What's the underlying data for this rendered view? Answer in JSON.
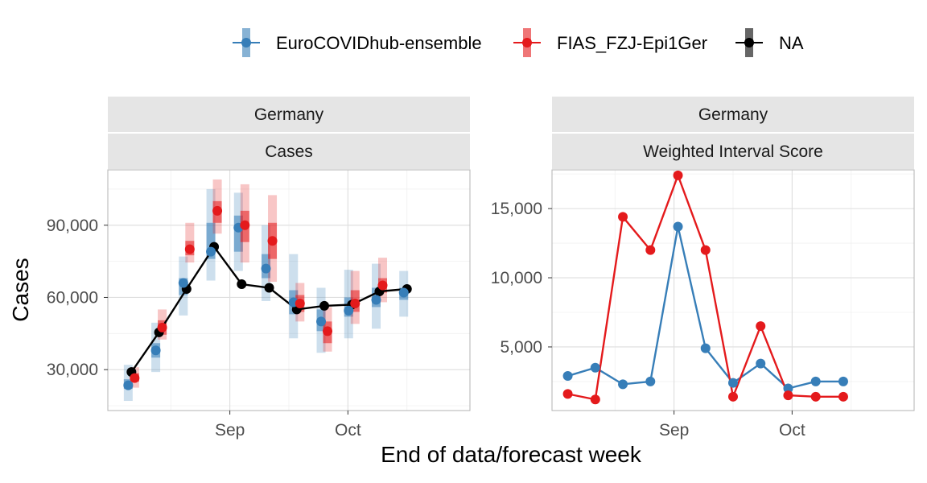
{
  "legend": {
    "items": [
      {
        "label": "EuroCOVIDhub-ensemble",
        "color": "#377EB8"
      },
      {
        "label": "FIAS_FZJ-Epi1Ger",
        "color": "#E41A1C"
      },
      {
        "label": "NA",
        "color": "#000000"
      }
    ]
  },
  "xlabel": "End of data/forecast week",
  "ylabel": "Cases",
  "chart_data": [
    {
      "type": "line",
      "panel": "left",
      "strip_top": "Germany",
      "strip_bottom": "Cases",
      "xlim": [
        "2021-08-01",
        "2021-11-01"
      ],
      "ylim": [
        13000,
        113000
      ],
      "y_ticks": [
        30000,
        60000,
        90000
      ],
      "y_tick_labels": [
        "30,000",
        "60,000",
        "90,000"
      ],
      "x_ticks": [
        "2021-09-01",
        "2021-10-01"
      ],
      "x_tick_labels": [
        "Sep",
        "Oct"
      ],
      "grid": true,
      "truth": {
        "name": "NA",
        "color": "#000000",
        "x": [
          "2021-08-07",
          "2021-08-14",
          "2021-08-21",
          "2021-08-28",
          "2021-09-04",
          "2021-09-11",
          "2021-09-18",
          "2021-09-25",
          "2021-10-02",
          "2021-10-09",
          "2021-10-16"
        ],
        "values": [
          29000,
          45500,
          63500,
          81000,
          65500,
          64000,
          55000,
          56500,
          57000,
          62500,
          63500
        ]
      },
      "forecasts": [
        {
          "name": "EuroCOVIDhub-ensemble",
          "color": "#377EB8",
          "x": [
            "2021-08-07",
            "2021-08-14",
            "2021-08-21",
            "2021-08-28",
            "2021-09-04",
            "2021-09-11",
            "2021-09-18",
            "2021-09-25",
            "2021-10-02",
            "2021-10-09",
            "2021-10-16"
          ],
          "median": [
            23500,
            38000,
            66000,
            79000,
            89000,
            72000,
            58000,
            50000,
            54500,
            59000,
            62000
          ],
          "q25": [
            22000,
            35000,
            61000,
            76000,
            79000,
            68000,
            53000,
            46000,
            52000,
            56000,
            59000
          ],
          "q75": [
            26000,
            41000,
            68000,
            91000,
            94000,
            78000,
            63000,
            55000,
            60000,
            64000,
            64000
          ],
          "q05": [
            17000,
            29000,
            52500,
            67000,
            71000,
            58500,
            43000,
            37000,
            43000,
            47000,
            52000
          ],
          "q95": [
            32000,
            49500,
            77000,
            105000,
            103500,
            90000,
            78000,
            64000,
            71500,
            74000,
            71000
          ]
        },
        {
          "name": "FIAS_FZJ-Epi1Ger",
          "color": "#E41A1C",
          "x": [
            "2021-08-07",
            "2021-08-14",
            "2021-08-21",
            "2021-08-28",
            "2021-09-04",
            "2021-09-11",
            "2021-09-18",
            "2021-09-25",
            "2021-10-02",
            "2021-10-09"
          ],
          "median": [
            26500,
            47500,
            80000,
            96000,
            90000,
            83500,
            57500,
            46000,
            57500,
            65000
          ],
          "q25": [
            25000,
            44500,
            77500,
            91000,
            83000,
            76000,
            54000,
            41000,
            54000,
            62000
          ],
          "q75": [
            28500,
            50500,
            83500,
            100000,
            96000,
            91000,
            61000,
            50000,
            63000,
            68000
          ],
          "q05": [
            22500,
            42500,
            74500,
            86500,
            74500,
            66500,
            50000,
            37500,
            49000,
            58000
          ],
          "q95": [
            31000,
            55000,
            91000,
            109000,
            107000,
            102500,
            66000,
            56000,
            71000,
            76500
          ]
        }
      ]
    },
    {
      "type": "line",
      "panel": "right",
      "strip_top": "Germany",
      "strip_bottom": "Weighted Interval Score",
      "xlim": [
        "2021-08-01",
        "2021-11-01"
      ],
      "ylim": [
        400,
        17800
      ],
      "y_ticks": [
        5000,
        10000,
        15000
      ],
      "y_tick_labels": [
        "5,000",
        "10,000",
        "15,000"
      ],
      "x_ticks": [
        "2021-09-01",
        "2021-10-01"
      ],
      "x_tick_labels": [
        "Sep",
        "Oct"
      ],
      "grid": true,
      "series": [
        {
          "name": "EuroCOVIDhub-ensemble",
          "color": "#377EB8",
          "x": [
            "2021-08-05",
            "2021-08-12",
            "2021-08-19",
            "2021-08-26",
            "2021-09-02",
            "2021-09-09",
            "2021-09-16",
            "2021-09-23",
            "2021-09-30",
            "2021-10-07",
            "2021-10-14"
          ],
          "values": [
            2900,
            3500,
            2300,
            2500,
            13700,
            4900,
            2400,
            3800,
            2000,
            2500,
            2500
          ]
        },
        {
          "name": "FIAS_FZJ-Epi1Ger",
          "color": "#E41A1C",
          "x": [
            "2021-08-05",
            "2021-08-12",
            "2021-08-19",
            "2021-08-26",
            "2021-09-02",
            "2021-09-09",
            "2021-09-16",
            "2021-09-23",
            "2021-09-30",
            "2021-10-07",
            "2021-10-14"
          ],
          "values": [
            1600,
            1200,
            14400,
            12000,
            17400,
            12000,
            1400,
            6500,
            1500,
            1400,
            1400
          ]
        }
      ]
    }
  ]
}
